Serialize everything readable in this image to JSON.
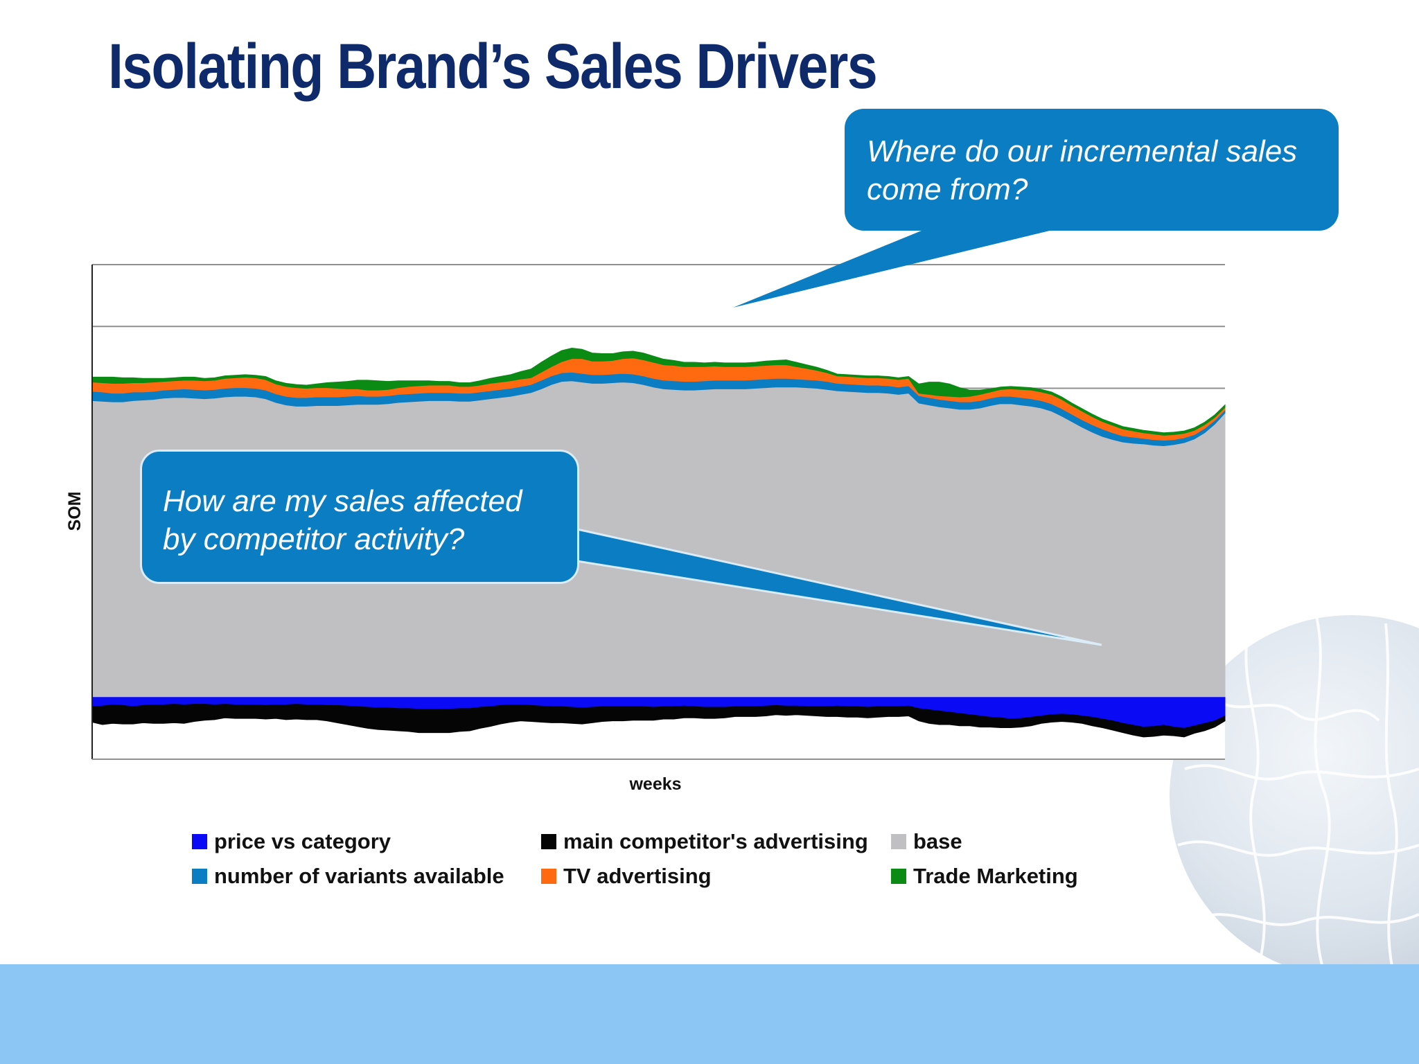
{
  "slide": {
    "title": "Isolating Brand’s Sales Drivers",
    "colors": {
      "title": "#0f2a6b",
      "callout": "#0b7dc2",
      "band": "#8cc6f4"
    },
    "callouts": [
      {
        "text": "Where do our incremental sales come from?"
      },
      {
        "text": "How are my sales affected by competitor activity?"
      }
    ]
  },
  "chart_data": {
    "type": "area",
    "stacked": true,
    "title": "",
    "xlabel": "weeks",
    "ylabel": "SOM",
    "ylim": [
      -1,
      7
    ],
    "grid": true,
    "legend_position": "bottom",
    "x_ticks": "none",
    "y_ticks": "none",
    "series": [
      {
        "name": "price vs category",
        "color": "#0a0af5",
        "sign": "negative",
        "values": [
          -0.15,
          -0.14,
          -0.12,
          -0.13,
          -0.15,
          -0.13,
          -0.12,
          -0.12,
          -0.11,
          -0.12,
          -0.11,
          -0.11,
          -0.12,
          -0.11,
          -0.12,
          -0.12,
          -0.12,
          -0.13,
          -0.12,
          -0.12,
          -0.11,
          -0.12,
          -0.12,
          -0.13,
          -0.13,
          -0.14,
          -0.15,
          -0.16,
          -0.17,
          -0.17,
          -0.18,
          -0.18,
          -0.19,
          -0.19,
          -0.19,
          -0.19,
          -0.18,
          -0.18,
          -0.16,
          -0.15,
          -0.13,
          -0.12,
          -0.12,
          -0.13,
          -0.14,
          -0.15,
          -0.15,
          -0.16,
          -0.17,
          -0.16,
          -0.15,
          -0.15,
          -0.15,
          -0.15,
          -0.15,
          -0.16,
          -0.15,
          -0.15,
          -0.14,
          -0.15,
          -0.16,
          -0.16,
          -0.16,
          -0.15,
          -0.15,
          -0.15,
          -0.14,
          -0.13,
          -0.14,
          -0.14,
          -0.15,
          -0.15,
          -0.15,
          -0.14,
          -0.15,
          -0.15,
          -0.16,
          -0.15,
          -0.15,
          -0.15,
          -0.14,
          -0.18,
          -0.2,
          -0.22,
          -0.24,
          -0.26,
          -0.28,
          -0.3,
          -0.32,
          -0.33,
          -0.35,
          -0.34,
          -0.32,
          -0.3,
          -0.28,
          -0.27,
          -0.28,
          -0.3,
          -0.32,
          -0.35,
          -0.38,
          -0.42,
          -0.45,
          -0.48,
          -0.47,
          -0.45,
          -0.48,
          -0.5,
          -0.46,
          -0.42,
          -0.38,
          -0.3
        ]
      },
      {
        "name": "main competitor's advertising",
        "color": "#050505",
        "sign": "negative",
        "values": [
          0.25,
          0.3,
          0.3,
          0.3,
          0.28,
          0.28,
          0.3,
          0.3,
          0.3,
          0.3,
          0.28,
          0.26,
          0.24,
          0.22,
          0.22,
          0.22,
          0.22,
          0.22,
          0.22,
          0.24,
          0.24,
          0.24,
          0.24,
          0.25,
          0.28,
          0.3,
          0.32,
          0.34,
          0.35,
          0.36,
          0.36,
          0.37,
          0.38,
          0.38,
          0.38,
          0.38,
          0.37,
          0.36,
          0.34,
          0.32,
          0.3,
          0.28,
          0.26,
          0.26,
          0.26,
          0.26,
          0.26,
          0.26,
          0.26,
          0.25,
          0.24,
          0.23,
          0.23,
          0.22,
          0.22,
          0.21,
          0.2,
          0.2,
          0.19,
          0.18,
          0.18,
          0.18,
          0.17,
          0.16,
          0.16,
          0.16,
          0.16,
          0.15,
          0.15,
          0.14,
          0.14,
          0.15,
          0.16,
          0.17,
          0.17,
          0.17,
          0.17,
          0.17,
          0.16,
          0.16,
          0.16,
          0.2,
          0.22,
          0.22,
          0.2,
          0.2,
          0.18,
          0.18,
          0.16,
          0.16,
          0.14,
          0.14,
          0.14,
          0.12,
          0.12,
          0.12,
          0.12,
          0.12,
          0.14,
          0.14,
          0.15,
          0.15,
          0.16,
          0.16,
          0.16,
          0.16,
          0.14,
          0.14,
          0.12,
          0.12,
          0.1,
          0.08
        ]
      },
      {
        "name": "number of variants available",
        "color": "#0b7dc2",
        "sign": "positive",
        "values": [
          0.15,
          0.15,
          0.14,
          0.14,
          0.14,
          0.13,
          0.13,
          0.13,
          0.13,
          0.14,
          0.14,
          0.14,
          0.14,
          0.14,
          0.14,
          0.14,
          0.14,
          0.14,
          0.14,
          0.14,
          0.14,
          0.14,
          0.14,
          0.14,
          0.14,
          0.14,
          0.14,
          0.13,
          0.13,
          0.13,
          0.13,
          0.13,
          0.13,
          0.13,
          0.13,
          0.13,
          0.13,
          0.13,
          0.13,
          0.13,
          0.13,
          0.13,
          0.13,
          0.13,
          0.14,
          0.14,
          0.14,
          0.14,
          0.14,
          0.14,
          0.14,
          0.14,
          0.14,
          0.14,
          0.14,
          0.14,
          0.14,
          0.14,
          0.14,
          0.14,
          0.14,
          0.14,
          0.14,
          0.14,
          0.14,
          0.14,
          0.14,
          0.14,
          0.14,
          0.13,
          0.13,
          0.13,
          0.13,
          0.12,
          0.12,
          0.12,
          0.12,
          0.12,
          0.12,
          0.12,
          0.12,
          0.12,
          0.12,
          0.12,
          0.12,
          0.12,
          0.12,
          0.12,
          0.12,
          0.12,
          0.12,
          0.12,
          0.12,
          0.12,
          0.12,
          0.12,
          0.12,
          0.12,
          0.12,
          0.12,
          0.11,
          0.1,
          0.1,
          0.09,
          0.09,
          0.09,
          0.08,
          0.08,
          0.07,
          0.07,
          0.06,
          0.05
        ]
      },
      {
        "name": "TV advertising",
        "color": "#ff6a10",
        "sign": "positive",
        "values": [
          0.15,
          0.15,
          0.16,
          0.16,
          0.15,
          0.15,
          0.15,
          0.14,
          0.14,
          0.14,
          0.15,
          0.15,
          0.15,
          0.16,
          0.16,
          0.17,
          0.17,
          0.17,
          0.16,
          0.16,
          0.16,
          0.15,
          0.15,
          0.15,
          0.14,
          0.12,
          0.11,
          0.1,
          0.1,
          0.1,
          0.11,
          0.12,
          0.12,
          0.12,
          0.12,
          0.12,
          0.11,
          0.11,
          0.11,
          0.12,
          0.12,
          0.12,
          0.12,
          0.11,
          0.13,
          0.15,
          0.18,
          0.22,
          0.24,
          0.22,
          0.22,
          0.22,
          0.24,
          0.26,
          0.26,
          0.26,
          0.25,
          0.25,
          0.24,
          0.24,
          0.23,
          0.23,
          0.22,
          0.22,
          0.22,
          0.22,
          0.22,
          0.22,
          0.22,
          0.2,
          0.18,
          0.16,
          0.14,
          0.12,
          0.12,
          0.12,
          0.12,
          0.12,
          0.12,
          0.12,
          0.12,
          0.04,
          0.05,
          0.06,
          0.07,
          0.08,
          0.09,
          0.1,
          0.1,
          0.11,
          0.12,
          0.13,
          0.14,
          0.14,
          0.15,
          0.15,
          0.14,
          0.14,
          0.13,
          0.12,
          0.12,
          0.11,
          0.1,
          0.09,
          0.09,
          0.08,
          0.08,
          0.07,
          0.07,
          0.06,
          0.05,
          0.04
        ]
      },
      {
        "name": "base",
        "color": "#c0c0c2",
        "sign": "positive",
        "values": [
          4.8,
          4.79,
          4.78,
          4.78,
          4.8,
          4.81,
          4.82,
          4.84,
          4.85,
          4.85,
          4.84,
          4.83,
          4.84,
          4.86,
          4.87,
          4.87,
          4.86,
          4.83,
          4.77,
          4.73,
          4.71,
          4.71,
          4.72,
          4.72,
          4.72,
          4.73,
          4.74,
          4.74,
          4.74,
          4.75,
          4.77,
          4.78,
          4.79,
          4.8,
          4.8,
          4.8,
          4.79,
          4.79,
          4.81,
          4.83,
          4.85,
          4.87,
          4.9,
          4.93,
          4.99,
          5.06,
          5.11,
          5.12,
          5.1,
          5.08,
          5.08,
          5.09,
          5.1,
          5.09,
          5.06,
          5.02,
          4.99,
          4.98,
          4.97,
          4.97,
          4.98,
          4.99,
          4.99,
          4.99,
          4.99,
          5.0,
          5.01,
          5.02,
          5.02,
          5.02,
          5.01,
          5.0,
          4.98,
          4.96,
          4.95,
          4.94,
          4.93,
          4.93,
          4.92,
          4.9,
          4.92,
          4.76,
          4.73,
          4.7,
          4.68,
          4.66,
          4.66,
          4.68,
          4.72,
          4.75,
          4.75,
          4.73,
          4.71,
          4.68,
          4.63,
          4.55,
          4.46,
          4.37,
          4.29,
          4.22,
          4.17,
          4.13,
          4.11,
          4.1,
          4.08,
          4.07,
          4.09,
          4.12,
          4.18,
          4.28,
          4.42,
          4.6
        ]
      },
      {
        "name": "Trade Marketing",
        "color": "#0b8a14",
        "sign": "positive",
        "values": [
          0.08,
          0.09,
          0.1,
          0.09,
          0.08,
          0.07,
          0.06,
          0.05,
          0.05,
          0.05,
          0.05,
          0.04,
          0.04,
          0.04,
          0.04,
          0.04,
          0.04,
          0.05,
          0.05,
          0.05,
          0.05,
          0.05,
          0.06,
          0.08,
          0.1,
          0.12,
          0.14,
          0.16,
          0.15,
          0.13,
          0.11,
          0.09,
          0.08,
          0.07,
          0.06,
          0.06,
          0.06,
          0.06,
          0.07,
          0.08,
          0.09,
          0.1,
          0.12,
          0.14,
          0.16,
          0.17,
          0.18,
          0.17,
          0.15,
          0.13,
          0.12,
          0.11,
          0.11,
          0.11,
          0.11,
          0.1,
          0.09,
          0.08,
          0.07,
          0.07,
          0.06,
          0.06,
          0.06,
          0.06,
          0.06,
          0.06,
          0.07,
          0.07,
          0.08,
          0.07,
          0.06,
          0.05,
          0.04,
          0.03,
          0.03,
          0.03,
          0.03,
          0.03,
          0.03,
          0.03,
          0.03,
          0.15,
          0.2,
          0.22,
          0.2,
          0.15,
          0.1,
          0.07,
          0.05,
          0.04,
          0.04,
          0.04,
          0.04,
          0.04,
          0.04,
          0.04,
          0.04,
          0.04,
          0.04,
          0.04,
          0.04,
          0.04,
          0.04,
          0.04,
          0.04,
          0.04,
          0.04,
          0.04,
          0.04,
          0.04,
          0.04,
          0.04
        ]
      }
    ],
    "legend_order": [
      "price vs category",
      "main competitor's advertising",
      "base",
      "number of variants available",
      "TV advertising",
      "Trade Marketing"
    ]
  }
}
